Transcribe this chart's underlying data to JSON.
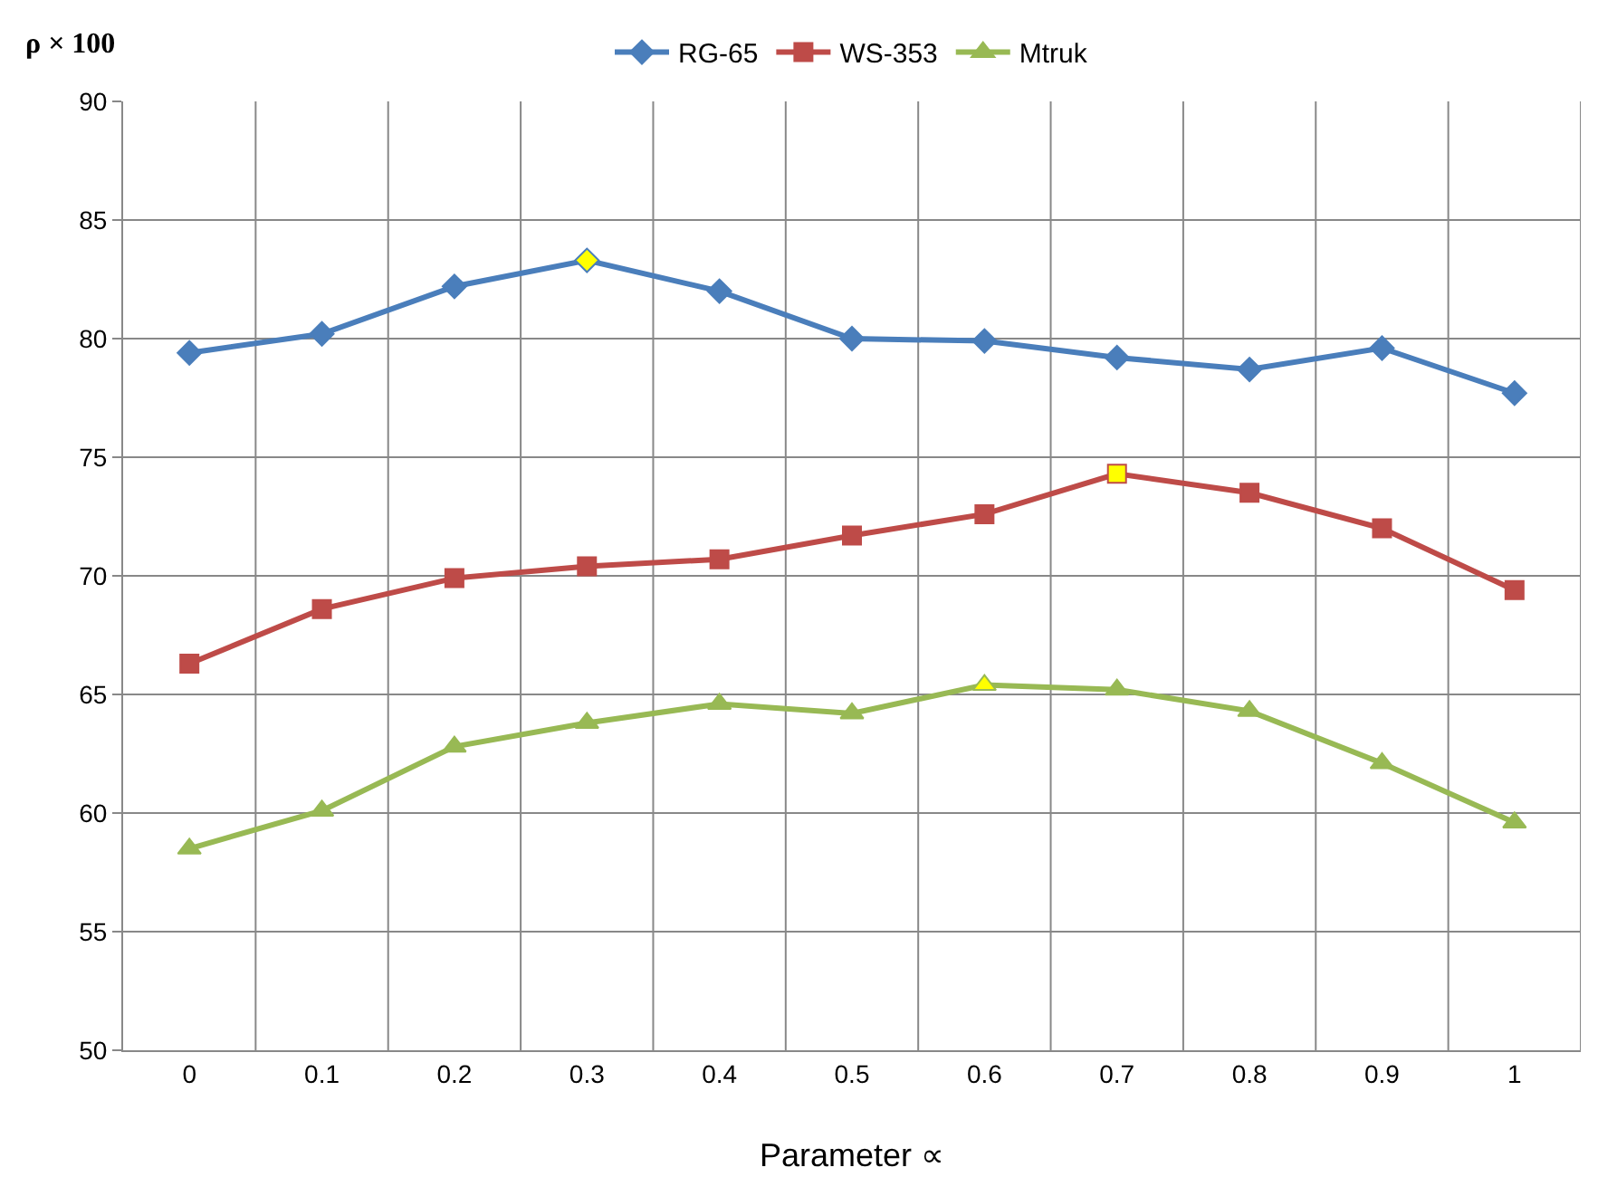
{
  "chart_data": {
    "type": "line",
    "xlabel": "Parameter ∝",
    "ylabel": "ρ × 100",
    "categories": [
      "0",
      "0.1",
      "0.2",
      "0.3",
      "0.4",
      "0.5",
      "0.6",
      "0.7",
      "0.8",
      "0.9",
      "1"
    ],
    "series": [
      {
        "name": "RG-65",
        "color": "#4a7ebb",
        "marker": "diamond",
        "values": [
          79.4,
          80.2,
          82.2,
          83.3,
          82.0,
          80.0,
          79.9,
          79.2,
          78.7,
          79.6,
          77.7
        ],
        "colors": [
          "#4a7ebb",
          "#4a7ebb",
          "#4a7ebb",
          "#ffff00",
          "#4a7ebb",
          "#4a7ebb",
          "#4a7ebb",
          "#4a7ebb",
          "#4a7ebb",
          "#4a7ebb",
          "#4a7ebb"
        ]
      },
      {
        "name": "WS-353",
        "color": "#be4b48",
        "marker": "square",
        "values": [
          66.3,
          68.6,
          69.9,
          70.4,
          70.7,
          71.7,
          72.6,
          74.3,
          73.5,
          72.0,
          69.4
        ],
        "colors": [
          "#be4b48",
          "#be4b48",
          "#be4b48",
          "#be4b48",
          "#be4b48",
          "#be4b48",
          "#be4b48",
          "#ffff00",
          "#be4b48",
          "#be4b48",
          "#be4b48"
        ]
      },
      {
        "name": "Mtruk",
        "color": "#98b954",
        "marker": "triangle",
        "values": [
          58.5,
          60.1,
          62.8,
          63.8,
          64.6,
          64.2,
          65.4,
          65.2,
          64.3,
          62.1,
          59.6
        ],
        "colors": [
          "#98b954",
          "#98b954",
          "#98b954",
          "#98b954",
          "#98b954",
          "#98b954",
          "#ffff00",
          "#98b954",
          "#98b954",
          "#98b954",
          "#98b954"
        ]
      }
    ],
    "ylim": [
      50,
      90
    ],
    "yticks": [
      50,
      55,
      60,
      65,
      70,
      75,
      80,
      85,
      90
    ],
    "grid": true,
    "legend": "top",
    "line_style": "solid"
  }
}
